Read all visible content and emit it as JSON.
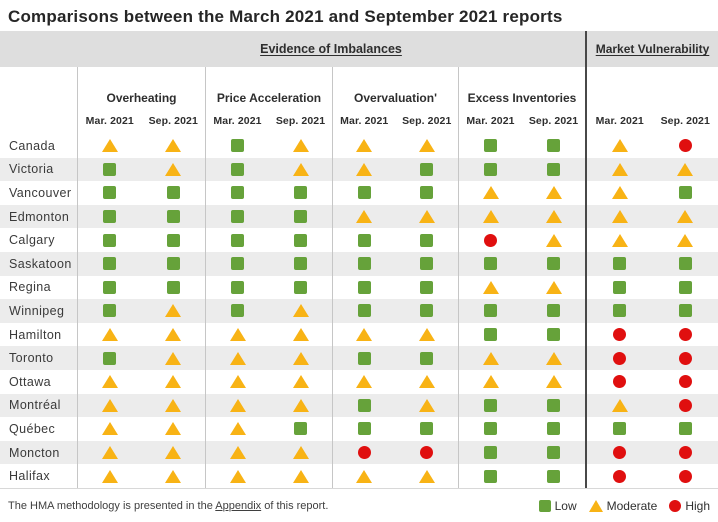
{
  "title": "Comparisons between the March 2021 and September 2021 reports",
  "header": {
    "evidence_group": "Evidence of Imbalances",
    "vulnerability_group": "Market Vulnerability"
  },
  "table": {
    "group_headers": [
      "Overheating",
      "Price Acceleration",
      "Overvaluation'",
      "Excess Inventories"
    ],
    "period_headers": [
      "Mar. 2021",
      "Sep. 2021"
    ]
  },
  "legend": {
    "items": [
      {
        "label": "Low",
        "symbol": "square",
        "color": "#66a23a"
      },
      {
        "label": "Moderate",
        "symbol": "triangle",
        "color": "#f8b315"
      },
      {
        "label": "High",
        "symbol": "circle",
        "color": "#e00f0f"
      }
    ]
  },
  "footnote": {
    "prefix": "The HMA methodology is presented in the ",
    "link": "Appendix",
    "suffix": " of this report."
  },
  "chart_data": {
    "type": "table",
    "title": "Comparisons between the March 2021 and September 2021 reports",
    "column_groups": [
      "Overheating",
      "Price Acceleration",
      "Overvaluation",
      "Excess Inventories",
      "Market Vulnerability"
    ],
    "columns": [
      "Overheating Mar. 2021",
      "Overheating Sep. 2021",
      "Price Acceleration Mar. 2021",
      "Price Acceleration Sep. 2021",
      "Overvaluation Mar. 2021",
      "Overvaluation Sep. 2021",
      "Excess Inventories Mar. 2021",
      "Excess Inventories Sep. 2021",
      "Market Vulnerability Mar. 2021",
      "Market Vulnerability Sep. 2021"
    ],
    "scale": [
      "Low",
      "Moderate",
      "High"
    ],
    "rows": [
      {
        "city": "Canada",
        "values": [
          "Moderate",
          "Moderate",
          "Low",
          "Moderate",
          "Moderate",
          "Moderate",
          "Low",
          "Low",
          "Moderate",
          "High"
        ]
      },
      {
        "city": "Victoria",
        "values": [
          "Low",
          "Moderate",
          "Low",
          "Moderate",
          "Moderate",
          "Low",
          "Low",
          "Low",
          "Moderate",
          "Moderate"
        ]
      },
      {
        "city": "Vancouver",
        "values": [
          "Low",
          "Low",
          "Low",
          "Low",
          "Low",
          "Low",
          "Moderate",
          "Moderate",
          "Moderate",
          "Low"
        ]
      },
      {
        "city": "Edmonton",
        "values": [
          "Low",
          "Low",
          "Low",
          "Low",
          "Moderate",
          "Moderate",
          "Moderate",
          "Moderate",
          "Moderate",
          "Moderate"
        ]
      },
      {
        "city": "Calgary",
        "values": [
          "Low",
          "Low",
          "Low",
          "Low",
          "Low",
          "Low",
          "High",
          "Moderate",
          "Moderate",
          "Moderate"
        ]
      },
      {
        "city": "Saskatoon",
        "values": [
          "Low",
          "Low",
          "Low",
          "Low",
          "Low",
          "Low",
          "Low",
          "Low",
          "Low",
          "Low"
        ]
      },
      {
        "city": "Regina",
        "values": [
          "Low",
          "Low",
          "Low",
          "Low",
          "Low",
          "Low",
          "Moderate",
          "Moderate",
          "Low",
          "Low"
        ]
      },
      {
        "city": "Winnipeg",
        "values": [
          "Low",
          "Moderate",
          "Low",
          "Moderate",
          "Low",
          "Low",
          "Low",
          "Low",
          "Low",
          "Low"
        ]
      },
      {
        "city": "Hamilton",
        "values": [
          "Moderate",
          "Moderate",
          "Moderate",
          "Moderate",
          "Moderate",
          "Moderate",
          "Low",
          "Low",
          "High",
          "High"
        ]
      },
      {
        "city": "Toronto",
        "values": [
          "Low",
          "Moderate",
          "Moderate",
          "Moderate",
          "Low",
          "Low",
          "Moderate",
          "Moderate",
          "High",
          "High"
        ]
      },
      {
        "city": "Ottawa",
        "values": [
          "Moderate",
          "Moderate",
          "Moderate",
          "Moderate",
          "Moderate",
          "Moderate",
          "Moderate",
          "Moderate",
          "High",
          "High"
        ]
      },
      {
        "city": "Montréal",
        "values": [
          "Moderate",
          "Moderate",
          "Moderate",
          "Moderate",
          "Low",
          "Moderate",
          "Low",
          "Low",
          "Moderate",
          "High"
        ]
      },
      {
        "city": "Québec",
        "values": [
          "Moderate",
          "Moderate",
          "Moderate",
          "Low",
          "Low",
          "Low",
          "Low",
          "Low",
          "Low",
          "Low"
        ]
      },
      {
        "city": "Moncton",
        "values": [
          "Moderate",
          "Moderate",
          "Moderate",
          "Moderate",
          "High",
          "High",
          "Low",
          "Low",
          "High",
          "High"
        ]
      },
      {
        "city": "Halifax",
        "values": [
          "Moderate",
          "Moderate",
          "Moderate",
          "Moderate",
          "Moderate",
          "Moderate",
          "Low",
          "Low",
          "High",
          "High"
        ]
      }
    ]
  }
}
